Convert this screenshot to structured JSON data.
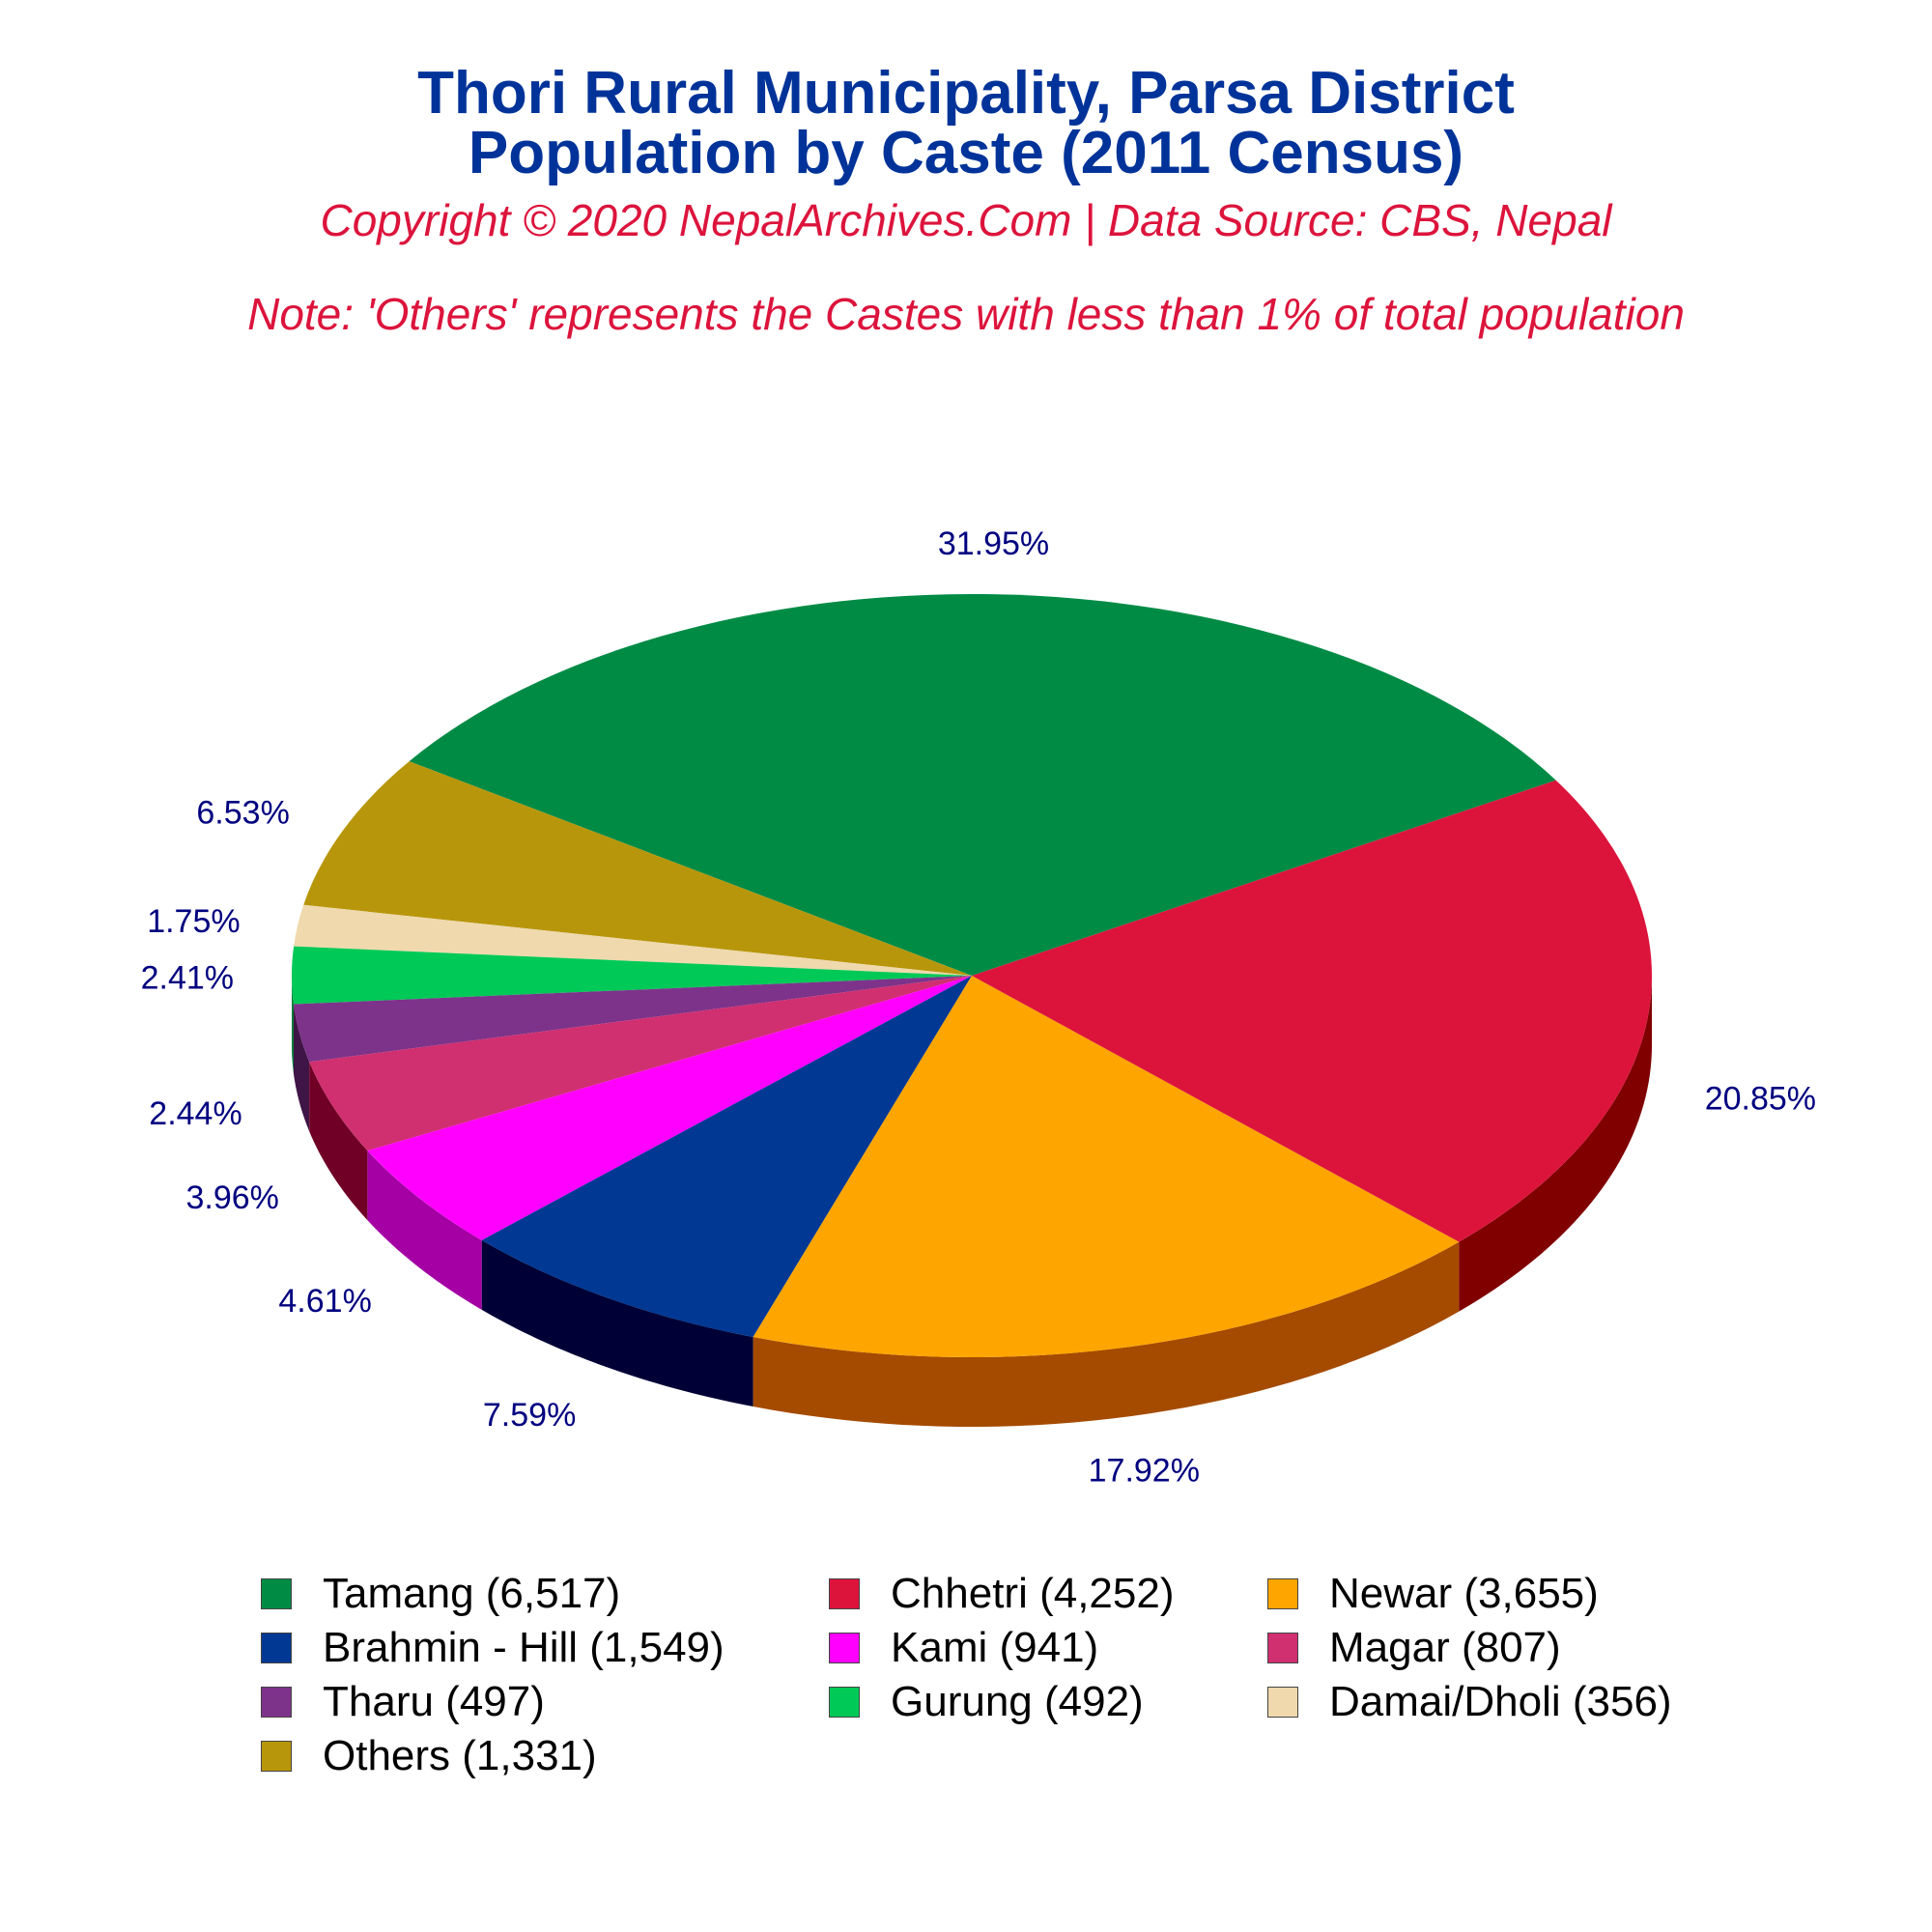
{
  "header": {
    "title_line1": "Thori Rural Municipality, Parsa District",
    "title_line2": "Population by Caste (2011 Census)",
    "copyright": "Copyright © 2020 NepalArchives.Com | Data Source: CBS, Nepal",
    "note": "Note: 'Others' represents the Castes with less than 1% of total population"
  },
  "colors": {
    "title": "#003399",
    "subtitle": "#dc143c",
    "label": "#000080"
  },
  "chart_data": {
    "type": "pie",
    "style": "3d",
    "slices": [
      {
        "name": "Tamang",
        "value": 6517,
        "percent_label": "31.95%",
        "legend": "Tamang (6,517)",
        "color": "#008b45",
        "side_color": "#004d26"
      },
      {
        "name": "Others",
        "value": 1331,
        "percent_label": "6.53%",
        "legend": "Others (1,331)",
        "color": "#b8960b",
        "side_color": "#6b5806"
      },
      {
        "name": "Damai/Dholi",
        "value": 356,
        "percent_label": "1.75%",
        "legend": "Damai/Dholi (356)",
        "color": "#efd9ad",
        "side_color": "#9c8a66"
      },
      {
        "name": "Gurung",
        "value": 492,
        "percent_label": "2.41%",
        "legend": "Gurung (492)",
        "color": "#00c957",
        "side_color": "#007a35"
      },
      {
        "name": "Tharu",
        "value": 497,
        "percent_label": "2.44%",
        "legend": "Tharu (497)",
        "color": "#7d338a",
        "side_color": "#3f1446"
      },
      {
        "name": "Magar",
        "value": 807,
        "percent_label": "3.96%",
        "legend": "Magar (807)",
        "color": "#d02f70",
        "side_color": "#700025"
      },
      {
        "name": "Kami",
        "value": 941,
        "percent_label": "4.61%",
        "legend": "Kami (941)",
        "color": "#ff00ff",
        "side_color": "#a400a4"
      },
      {
        "name": "Brahmin - Hill",
        "value": 1549,
        "percent_label": "7.59%",
        "legend": "Brahmin - Hill (1,549)",
        "color": "#003893",
        "side_color": "#000036"
      },
      {
        "name": "Newar",
        "value": 3655,
        "percent_label": "17.92%",
        "legend": "Newar (3,655)",
        "color": "#ffa500",
        "side_color": "#a44b00"
      },
      {
        "name": "Chhetri",
        "value": 4252,
        "percent_label": "20.85%",
        "legend": "Chhetri (4,252)",
        "color": "#dc143c",
        "side_color": "#800000"
      }
    ],
    "legend_order": [
      "Tamang",
      "Chhetri",
      "Newar",
      "Brahmin - Hill",
      "Kami",
      "Magar",
      "Tharu",
      "Gurung",
      "Damai/Dholi",
      "Others"
    ],
    "legend_placement": "bottom"
  }
}
